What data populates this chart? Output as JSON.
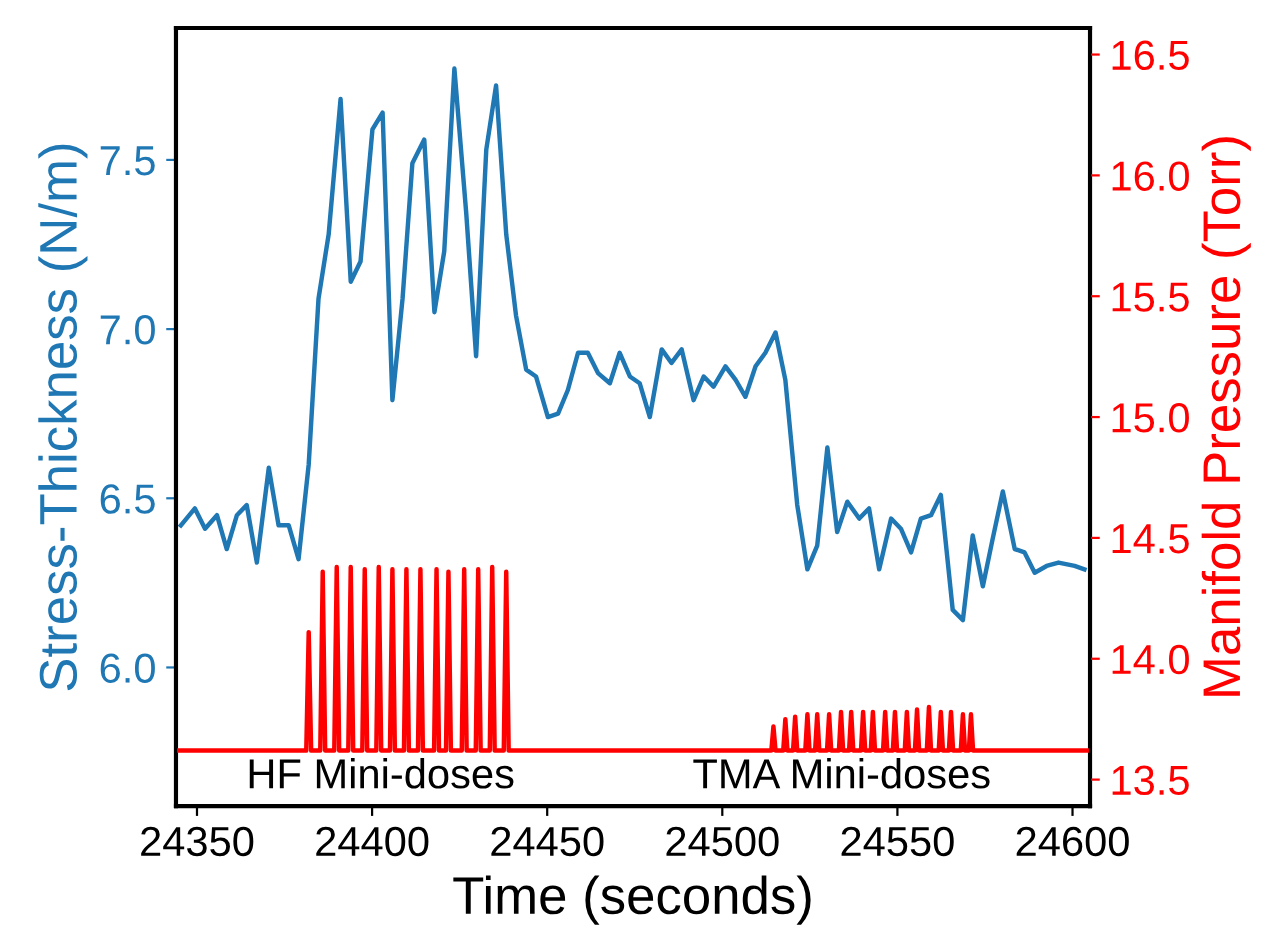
{
  "chart_data": {
    "type": "line",
    "xlabel": "Time (seconds)",
    "ylabel": "Stress-Thickness (N/m)",
    "y2label": "Manifold Pressure (Torr)",
    "xlim": [
      24344,
      24605
    ],
    "xticks": [
      24350,
      24400,
      24450,
      24500,
      24550,
      24600
    ],
    "ylim": [
      5.59,
      7.89
    ],
    "yticks": [
      {
        "value": 6,
        "label": "6.0"
      },
      {
        "value": 6.5,
        "label": "6.5"
      },
      {
        "value": 7,
        "label": "7.0"
      },
      {
        "value": 7.5,
        "label": "7.5"
      }
    ],
    "y2lim": [
      13.39,
      16.61
    ],
    "y2ticks": [
      {
        "value": 13.5,
        "label": "13.5"
      },
      {
        "value": 14,
        "label": "14.0"
      },
      {
        "value": 14.5,
        "label": "14.5"
      },
      {
        "value": 15,
        "label": "15.0"
      },
      {
        "value": 15.5,
        "label": "15.5"
      },
      {
        "value": 16,
        "label": "16.0"
      },
      {
        "value": 16.5,
        "label": "16.5"
      }
    ],
    "grid": false,
    "annotations": [
      "HF Mini-doses",
      "TMA Mini-doses"
    ],
    "series": [
      {
        "color": "#1f77b4",
        "x": [
          24345.4,
          24349.4,
          24352.3,
          24355.7,
          24358.5,
          24361.4,
          24364.2,
          24367.1,
          24370.5,
          24373.3,
          24376.2,
          24379.0,
          24381.9,
          24384.7,
          24387.6,
          24391.0,
          24393.9,
          24396.7,
          24400.1,
          24403.0,
          24405.8,
          24408.7,
          24411.5,
          24414.9,
          24417.8,
          24420.6,
          24423.5,
          24426.9,
          24429.7,
          24432.6,
          24435.4,
          24438.3,
          24441.1,
          24444.0,
          24446.8,
          24450.2,
          24453.1,
          24455.9,
          24458.8,
          24461.6,
          24464.5,
          24467.9,
          24470.7,
          24473.6,
          24476.4,
          24479.3,
          24482.7,
          24485.5,
          24488.4,
          24491.8,
          24494.7,
          24497.5,
          24500.9,
          24503.8,
          24506.6,
          24509.5,
          24512.3,
          24515.2,
          24518.0,
          24521.4,
          24524.3,
          24527.1,
          24530.0,
          24532.8,
          24535.7,
          24539.1,
          24541.9,
          24544.8,
          24548.2,
          24551.0,
          24553.9,
          24556.7,
          24559.6,
          24562.4,
          24565.8,
          24568.7,
          24571.5,
          24574.4,
          24577.2,
          24580.1,
          24583.5,
          24586.3,
          24589.2,
          24592.6,
          24596.0,
          24600.6,
          24603.4
        ],
        "values": [
          6.42,
          6.47,
          6.41,
          6.45,
          6.35,
          6.45,
          6.48,
          6.31,
          6.59,
          6.42,
          6.42,
          6.32,
          6.6,
          7.09,
          7.28,
          7.68,
          7.14,
          7.2,
          7.59,
          7.64,
          6.79,
          7.09,
          7.49,
          7.56,
          7.05,
          7.23,
          7.77,
          7.34,
          6.92,
          7.53,
          7.72,
          7.28,
          7.04,
          6.88,
          6.86,
          6.74,
          6.75,
          6.82,
          6.93,
          6.93,
          6.87,
          6.84,
          6.93,
          6.86,
          6.84,
          6.74,
          6.94,
          6.9,
          6.94,
          6.79,
          6.86,
          6.83,
          6.89,
          6.85,
          6.8,
          6.89,
          6.93,
          6.99,
          6.85,
          6.48,
          6.29,
          6.36,
          6.65,
          6.4,
          6.49,
          6.44,
          6.47,
          6.29,
          6.44,
          6.41,
          6.34,
          6.44,
          6.45,
          6.51,
          6.17,
          6.14,
          6.39,
          6.24,
          6.38,
          6.52,
          6.35,
          6.34,
          6.28,
          6.3,
          6.31,
          6.3,
          6.29
        ]
      },
      {
        "color": "#ff0000",
        "axis": "y2",
        "x": [
          24344,
          24381.2,
          24381.9,
          24382.6,
          24385.2,
          24385.9,
          24386.6,
          24389.2,
          24389.9,
          24390.6,
          24393.2,
          24393.9,
          24394.6,
          24397.2,
          24397.9,
          24398.6,
          24401.2,
          24401.9,
          24402.6,
          24405.1,
          24405.8,
          24406.5,
          24409.1,
          24409.8,
          24410.5,
          24413.1,
          24413.8,
          24414.5,
          24417.7,
          24418.4,
          24419.1,
          24421.1,
          24421.8,
          24422.5,
          24425.6,
          24426.3,
          24427.0,
          24429.6,
          24430.3,
          24431.0,
          24433.6,
          24434.3,
          24435.0,
          24437.6,
          24438.3,
          24439.0,
          24514.0,
          24514.6,
          24515.2,
          24517.4,
          24518.0,
          24518.6,
          24520.2,
          24520.8,
          24521.4,
          24523.7,
          24524.3,
          24524.9,
          24526.5,
          24527.1,
          24527.7,
          24529.9,
          24530.5,
          24531.1,
          24533.3,
          24533.9,
          24534.5,
          24536.2,
          24536.8,
          24537.4,
          24539.6,
          24540.2,
          24540.8,
          24542.4,
          24543.0,
          24543.6,
          24545.9,
          24546.5,
          24547.1,
          24548.7,
          24549.3,
          24549.9,
          24552.1,
          24552.7,
          24553.3,
          24555.0,
          24555.6,
          24556.2,
          24558.4,
          24559.0,
          24559.6,
          24561.8,
          24562.4,
          24563.0,
          24564.7,
          24565.3,
          24565.9,
          24568.1,
          24568.7,
          24569.3,
          24570.4,
          24571.0,
          24571.6,
          24605
        ],
        "values": [
          13.62,
          13.62,
          14.11,
          13.62,
          13.62,
          14.36,
          13.62,
          13.62,
          14.38,
          13.62,
          13.62,
          14.38,
          13.62,
          13.62,
          14.37,
          13.62,
          13.62,
          14.38,
          13.62,
          13.62,
          14.37,
          13.62,
          13.62,
          14.37,
          13.62,
          13.62,
          14.37,
          13.62,
          13.62,
          14.37,
          13.62,
          13.62,
          14.36,
          13.62,
          13.62,
          14.37,
          13.62,
          13.62,
          14.37,
          13.62,
          13.62,
          14.38,
          13.62,
          13.62,
          14.36,
          13.62,
          13.62,
          13.72,
          13.62,
          13.62,
          13.75,
          13.62,
          13.62,
          13.76,
          13.62,
          13.62,
          13.77,
          13.62,
          13.62,
          13.77,
          13.62,
          13.62,
          13.77,
          13.62,
          13.62,
          13.78,
          13.62,
          13.62,
          13.78,
          13.62,
          13.62,
          13.78,
          13.62,
          13.62,
          13.78,
          13.62,
          13.62,
          13.78,
          13.62,
          13.62,
          13.78,
          13.62,
          13.62,
          13.78,
          13.62,
          13.62,
          13.79,
          13.62,
          13.62,
          13.8,
          13.62,
          13.62,
          13.78,
          13.62,
          13.62,
          13.78,
          13.62,
          13.62,
          13.77,
          13.62,
          13.62,
          13.77,
          13.62,
          13.62
        ]
      }
    ]
  }
}
